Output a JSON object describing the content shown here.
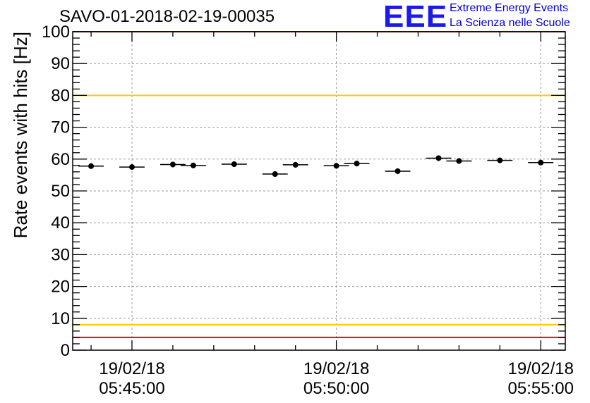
{
  "header": {
    "title": "SAVO-01-2018-02-19-00035",
    "logo_text": "EEE",
    "logo_line1": "Extreme Energy Events",
    "logo_line2": "La Scienza nelle Scuole"
  },
  "colors": {
    "limit_red": "#ff0000",
    "limit_yellow": "#ffcc00",
    "logo_blue": "#1a1aee",
    "grid": "#999999",
    "data": "#000000"
  },
  "chart_data": {
    "type": "scatter",
    "title": "SAVO-01-2018-02-19-00035",
    "ylabel": "Rate events with hits [Hz]",
    "xlabel": "",
    "ylim": [
      0,
      100
    ],
    "y_ticks": [
      0,
      10,
      20,
      30,
      40,
      50,
      60,
      70,
      80,
      90,
      100
    ],
    "xlim_minutes": [
      -1.45,
      10.6
    ],
    "x_ticks": [
      {
        "date": "19/02/18",
        "time": "05:45:00",
        "minute": 0
      },
      {
        "date": "19/02/18",
        "time": "05:50:00",
        "minute": 5
      },
      {
        "date": "19/02/18",
        "time": "05:55:00",
        "minute": 10
      }
    ],
    "grid": true,
    "reference_lines": [
      {
        "value": 100,
        "color": "red"
      },
      {
        "value": 80,
        "color": "yellow"
      },
      {
        "value": 8,
        "color": "yellow"
      },
      {
        "value": 4,
        "color": "red"
      }
    ],
    "series": [
      {
        "name": "rate",
        "bin_width_minutes": 0.62,
        "x_minutes": [
          -1.0,
          0.0,
          1.0,
          1.5,
          2.5,
          3.5,
          4.0,
          5.0,
          5.5,
          6.5,
          7.5,
          8.0,
          9.0,
          10.0
        ],
        "values": [
          57.8,
          57.5,
          58.3,
          58.0,
          58.4,
          55.3,
          58.2,
          57.9,
          58.6,
          56.2,
          60.3,
          59.4,
          59.6,
          58.9
        ]
      }
    ]
  }
}
